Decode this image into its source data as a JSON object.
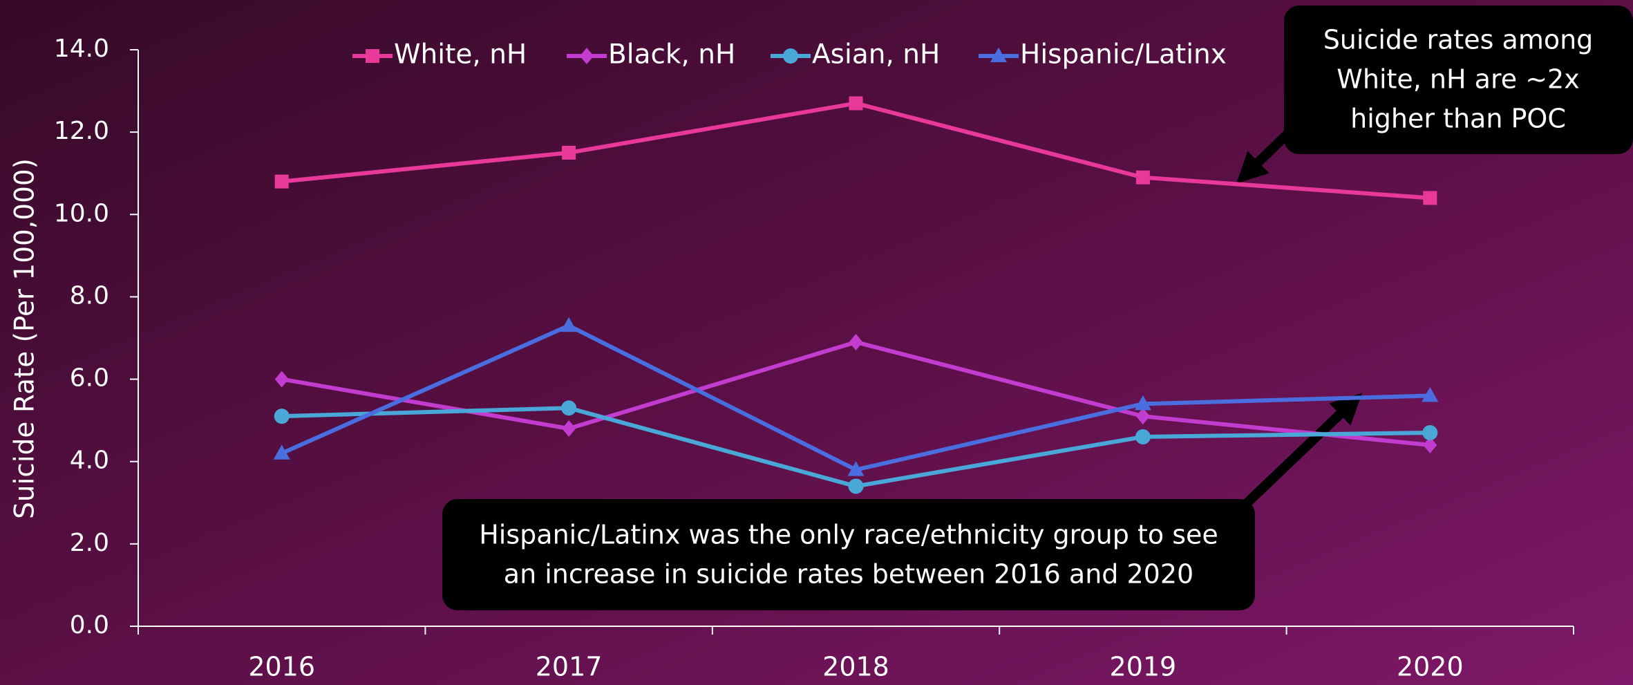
{
  "chart_data": {
    "type": "line",
    "y_label": "Suicide Rate (Per 100,000)",
    "categories": [
      "2016",
      "2017",
      "2018",
      "2019",
      "2020"
    ],
    "series": [
      {
        "name": "White, nH",
        "color": "#e8389a",
        "marker": "square",
        "values": [
          10.8,
          11.5,
          12.7,
          10.9,
          10.4
        ]
      },
      {
        "name": "Black, nH",
        "color": "#c23ccf",
        "marker": "diamond",
        "values": [
          6.0,
          4.8,
          6.9,
          5.1,
          4.4
        ]
      },
      {
        "name": "Asian, nH",
        "color": "#4aa8d8",
        "marker": "circle",
        "values": [
          5.1,
          5.3,
          3.4,
          4.6,
          4.7
        ]
      },
      {
        "name": "Hispanic/Latinx",
        "color": "#4a6ee0",
        "marker": "triangle",
        "values": [
          4.2,
          7.3,
          3.8,
          5.4,
          5.6
        ]
      }
    ],
    "ylim": [
      0,
      14
    ],
    "yticks": [
      {
        "value": 0,
        "label": "0.0"
      },
      {
        "value": 2,
        "label": "2.0"
      },
      {
        "value": 4,
        "label": "4.0"
      },
      {
        "value": 6,
        "label": "6.0"
      },
      {
        "value": 8,
        "label": "8.0"
      },
      {
        "value": 10,
        "label": "10.0"
      },
      {
        "value": 12,
        "label": "12.0"
      },
      {
        "value": 14,
        "label": "14.0"
      }
    ],
    "legend": "top",
    "annotations": [
      {
        "lines": [
          "Suicide rates among",
          "White, nH are ~2x",
          "higher than POC"
        ]
      },
      {
        "lines": [
          "Hispanic/Latinx was the only race/ethnicity group to see",
          "an increase in suicide rates between 2016 and 2020"
        ]
      }
    ]
  }
}
